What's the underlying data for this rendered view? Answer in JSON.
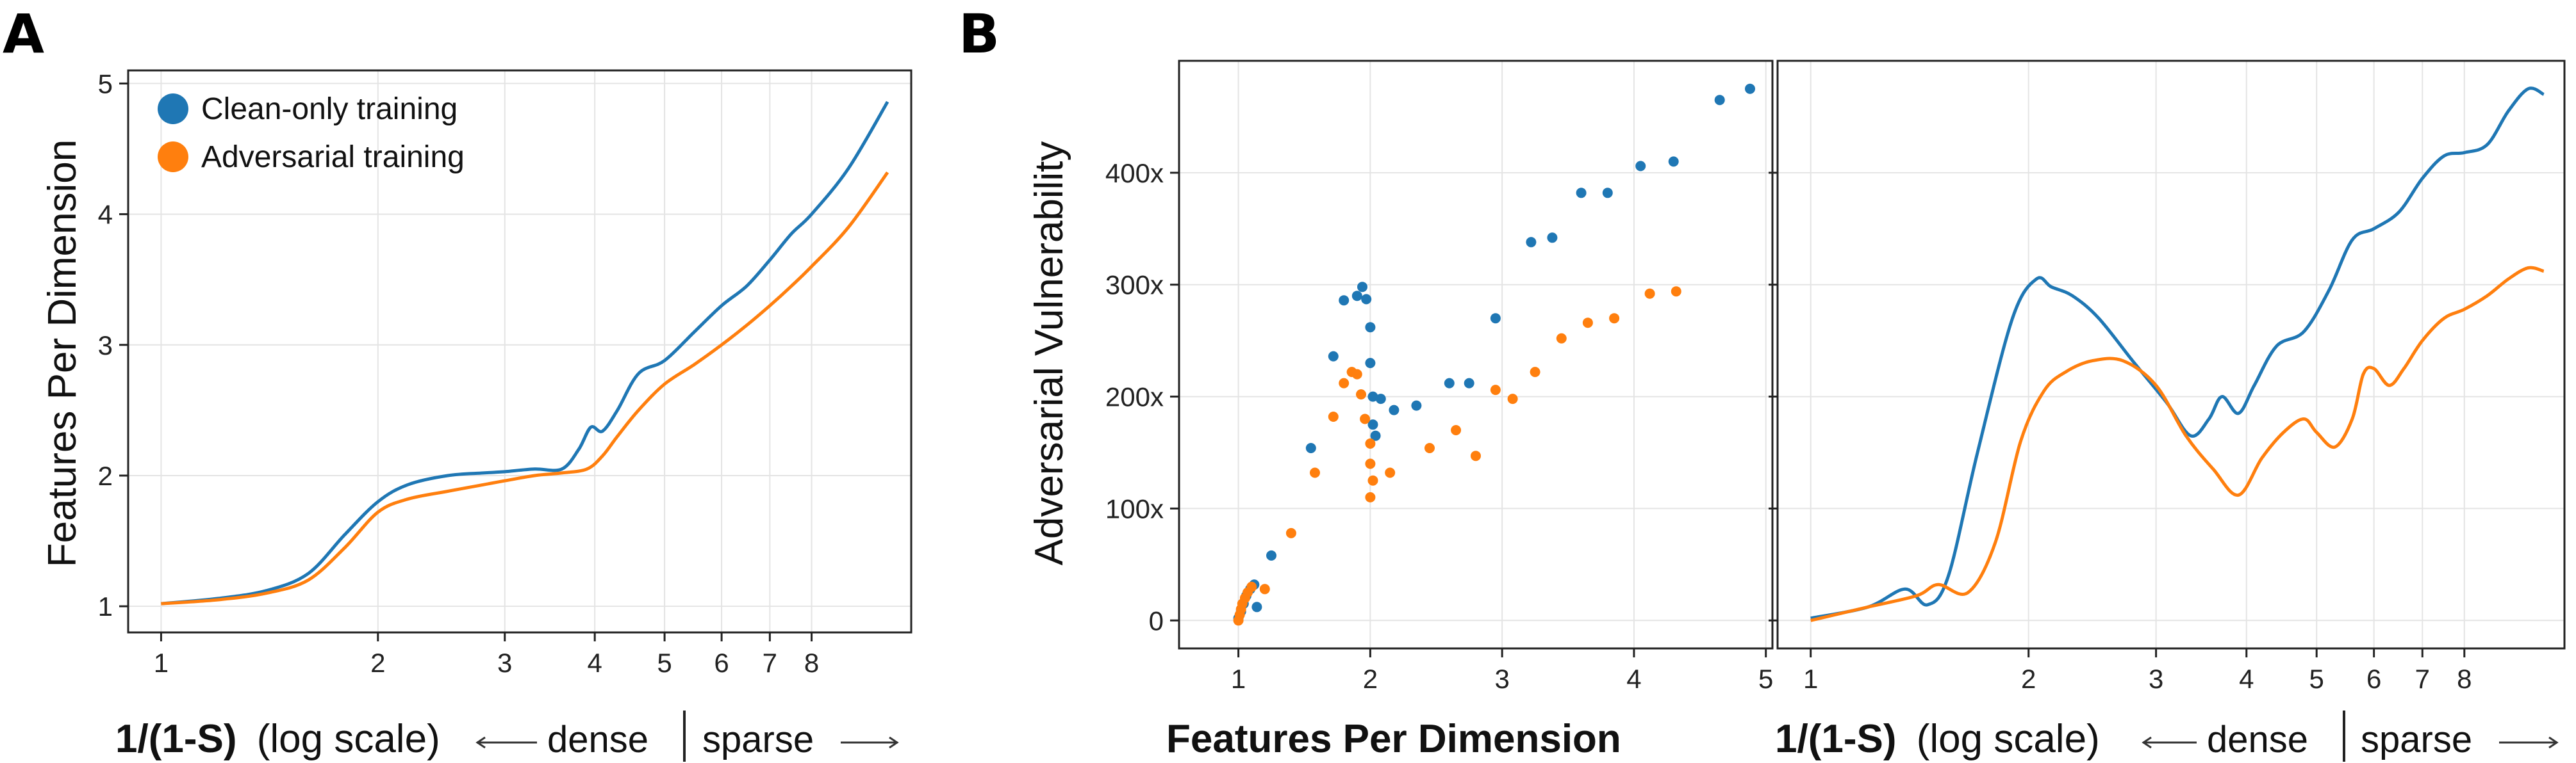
{
  "panels": {
    "a": {
      "letter": "A",
      "legend": [
        {
          "label": "Clean-only training",
          "color": "#1f77b4"
        },
        {
          "label": "Adversarial training",
          "color": "#ff7f0e"
        }
      ],
      "xlabel_bold": "1/(1-S)",
      "xlabel_rest": "(log scale)",
      "xnote_dense": "dense",
      "xnote_sparse": "sparse",
      "ylabel": "Features Per Dimension"
    },
    "b": {
      "letter": "B",
      "scatter_xlabel": "Features Per Dimension",
      "ylabel": "Adversarial Vulnerability",
      "xlabel_bold": "1/(1-S)",
      "xlabel_rest": "(log scale)",
      "xnote_dense": "dense",
      "xnote_sparse": "sparse"
    }
  },
  "chart_data": [
    {
      "id": "a",
      "type": "line",
      "title": "",
      "xlabel": "1/(1-S) (log scale)",
      "ylabel": "Features Per Dimension",
      "xscale": "log",
      "xlim": [
        0.9,
        11
      ],
      "ylim": [
        0.8,
        5.1
      ],
      "xticks": [
        1,
        2,
        3,
        4,
        5,
        6,
        7,
        8
      ],
      "xtick_labels": [
        "1",
        "2",
        "3",
        "4",
        "5",
        "6",
        "7",
        "8"
      ],
      "yticks": [
        1,
        2,
        3,
        4,
        5
      ],
      "ytick_labels": [
        "1",
        "2",
        "3",
        "4",
        "5"
      ],
      "grid": true,
      "legend_position": "top-left",
      "series": [
        {
          "name": "Clean-only training",
          "color": "#1f77b4",
          "x": [
            1,
            1.2,
            1.4,
            1.6,
            1.8,
            2.0,
            2.2,
            2.5,
            2.8,
            3.0,
            3.3,
            3.6,
            3.8,
            3.95,
            4.1,
            4.3,
            4.6,
            5.0,
            5.5,
            6.0,
            6.5,
            7.0,
            7.5,
            8.0,
            9.0,
            10.2
          ],
          "y": [
            1.02,
            1.06,
            1.12,
            1.25,
            1.55,
            1.8,
            1.93,
            2.0,
            2.02,
            2.03,
            2.05,
            2.05,
            2.2,
            2.37,
            2.34,
            2.5,
            2.78,
            2.88,
            3.1,
            3.3,
            3.45,
            3.65,
            3.85,
            4.0,
            4.35,
            4.86
          ]
        },
        {
          "name": "Adversarial training",
          "color": "#ff7f0e",
          "x": [
            1,
            1.2,
            1.4,
            1.6,
            1.8,
            2.0,
            2.2,
            2.5,
            2.8,
            3.0,
            3.3,
            3.6,
            3.9,
            4.1,
            4.3,
            4.6,
            5.0,
            5.5,
            6.0,
            6.5,
            7.0,
            7.5,
            8.0,
            9.0,
            10.2
          ],
          "y": [
            1.02,
            1.05,
            1.1,
            1.2,
            1.45,
            1.72,
            1.82,
            1.88,
            1.93,
            1.96,
            2.0,
            2.02,
            2.05,
            2.15,
            2.3,
            2.5,
            2.7,
            2.85,
            3.0,
            3.15,
            3.3,
            3.45,
            3.6,
            3.9,
            4.32
          ]
        }
      ]
    },
    {
      "id": "b-scatter",
      "type": "scatter",
      "title": "",
      "xlabel": "Features Per Dimension",
      "ylabel": "Adversarial Vulnerability",
      "xlim": [
        0.55,
        5.05
      ],
      "ylim": [
        -25,
        500
      ],
      "xticks": [
        1,
        2,
        3,
        4,
        5
      ],
      "xtick_labels": [
        "1",
        "2",
        "3",
        "4",
        "5"
      ],
      "yticks": [
        0,
        100,
        200,
        300,
        400
      ],
      "ytick_labels": [
        "0",
        "100x",
        "200x",
        "300x",
        "400x"
      ],
      "grid": true,
      "series": [
        {
          "name": "Clean-only training",
          "color": "#1f77b4",
          "x": [
            1.0,
            1.02,
            1.04,
            1.06,
            1.09,
            1.12,
            1.14,
            1.25,
            1.55,
            1.72,
            1.8,
            1.9,
            1.94,
            1.97,
            2.0,
            2.0,
            2.02,
            2.02,
            2.04,
            2.08,
            2.18,
            2.35,
            2.6,
            2.75,
            2.95,
            3.22,
            3.38,
            3.6,
            3.8,
            4.05,
            4.3,
            4.65,
            4.88
          ],
          "y": [
            2,
            8,
            15,
            22,
            28,
            32,
            12,
            58,
            154,
            236,
            286,
            290,
            298,
            287,
            262,
            230,
            200,
            175,
            165,
            198,
            188,
            192,
            212,
            212,
            270,
            338,
            342,
            382,
            382,
            406,
            410,
            465,
            475
          ]
        },
        {
          "name": "Adversarial training",
          "color": "#ff7f0e",
          "x": [
            1.0,
            1.01,
            1.02,
            1.03,
            1.05,
            1.07,
            1.1,
            1.2,
            1.4,
            1.58,
            1.72,
            1.8,
            1.86,
            1.9,
            1.93,
            1.96,
            2.0,
            2.0,
            2.0,
            2.02,
            2.15,
            2.45,
            2.65,
            2.8,
            2.95,
            3.08,
            3.25,
            3.45,
            3.65,
            3.85,
            4.12,
            4.32
          ],
          "y": [
            0,
            5,
            10,
            15,
            20,
            25,
            30,
            28,
            78,
            132,
            182,
            212,
            222,
            220,
            202,
            180,
            158,
            140,
            110,
            125,
            132,
            154,
            170,
            147,
            206,
            198,
            222,
            252,
            266,
            270,
            292,
            294
          ]
        }
      ]
    },
    {
      "id": "b-line",
      "type": "line",
      "title": "",
      "xlabel": "1/(1-S) (log scale)",
      "ylabel": "",
      "xscale": "log",
      "xlim": [
        0.9,
        11
      ],
      "ylim": [
        -25,
        500
      ],
      "xticks": [
        1,
        2,
        3,
        4,
        5,
        6,
        7,
        8
      ],
      "xtick_labels": [
        "1",
        "2",
        "3",
        "4",
        "5",
        "6",
        "7",
        "8"
      ],
      "yticks": [
        0,
        100,
        200,
        300,
        400
      ],
      "grid": true,
      "series": [
        {
          "name": "Clean-only training",
          "color": "#1f77b4",
          "x": [
            1,
            1.2,
            1.35,
            1.45,
            1.55,
            1.7,
            1.9,
            2.05,
            2.15,
            2.3,
            2.5,
            2.8,
            3.1,
            3.35,
            3.55,
            3.7,
            3.9,
            4.1,
            4.4,
            4.8,
            5.2,
            5.6,
            6.0,
            6.5,
            7.0,
            7.5,
            8.0,
            8.6,
            9.2,
            9.8,
            10.3
          ],
          "y": [
            2,
            12,
            28,
            14,
            40,
            150,
            270,
            305,
            298,
            290,
            270,
            230,
            195,
            165,
            180,
            200,
            185,
            210,
            245,
            258,
            295,
            340,
            350,
            365,
            395,
            415,
            418,
            425,
            455,
            475,
            470
          ]
        },
        {
          "name": "Adversarial training",
          "color": "#ff7f0e",
          "x": [
            1,
            1.2,
            1.4,
            1.5,
            1.65,
            1.8,
            1.95,
            2.1,
            2.25,
            2.45,
            2.7,
            3.0,
            3.3,
            3.6,
            3.9,
            4.2,
            4.5,
            4.8,
            5.0,
            5.3,
            5.6,
            5.8,
            6.0,
            6.3,
            6.6,
            7.0,
            7.5,
            8.0,
            8.6,
            9.2,
            9.8,
            10.3
          ],
          "y": [
            0,
            12,
            22,
            32,
            25,
            70,
            160,
            205,
            222,
            232,
            232,
            210,
            165,
            135,
            112,
            145,
            168,
            180,
            168,
            155,
            180,
            220,
            225,
            210,
            225,
            250,
            270,
            278,
            290,
            305,
            315,
            312
          ]
        }
      ]
    }
  ]
}
